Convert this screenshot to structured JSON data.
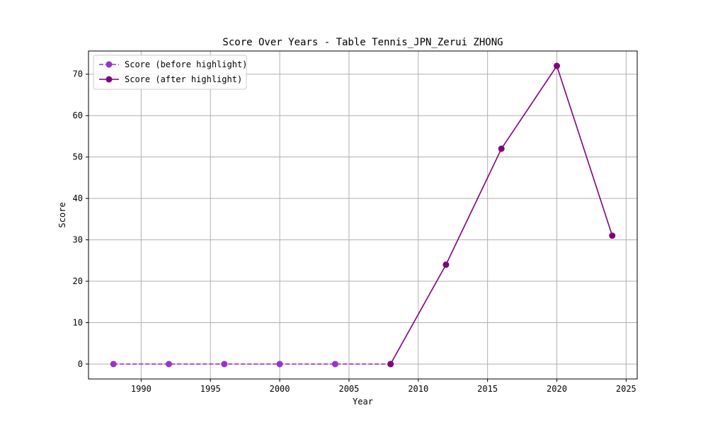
{
  "chart_data": {
    "type": "line",
    "title": "Score Over Years - Table Tennis_JPN_Zerui ZHONG",
    "xlabel": "Year",
    "ylabel": "Score",
    "xlim": [
      1986.2,
      2025.8
    ],
    "ylim": [
      -3.6,
      75.6
    ],
    "xticks": [
      1990,
      1995,
      2000,
      2005,
      2010,
      2015,
      2020,
      2025
    ],
    "yticks": [
      0,
      10,
      20,
      30,
      40,
      50,
      60,
      70
    ],
    "grid": true,
    "legend_position": "top-left",
    "series": [
      {
        "name": "Score (before highlight)",
        "style": "dashed",
        "color": "#9932CC",
        "x": [
          1988,
          1992,
          1996,
          2000,
          2004,
          2008
        ],
        "y": [
          0,
          0,
          0,
          0,
          0,
          0
        ]
      },
      {
        "name": "Score (after highlight)",
        "style": "solid",
        "color": "#800080",
        "x": [
          2008,
          2012,
          2016,
          2020,
          2024
        ],
        "y": [
          0,
          24,
          52,
          72,
          31
        ]
      }
    ]
  }
}
